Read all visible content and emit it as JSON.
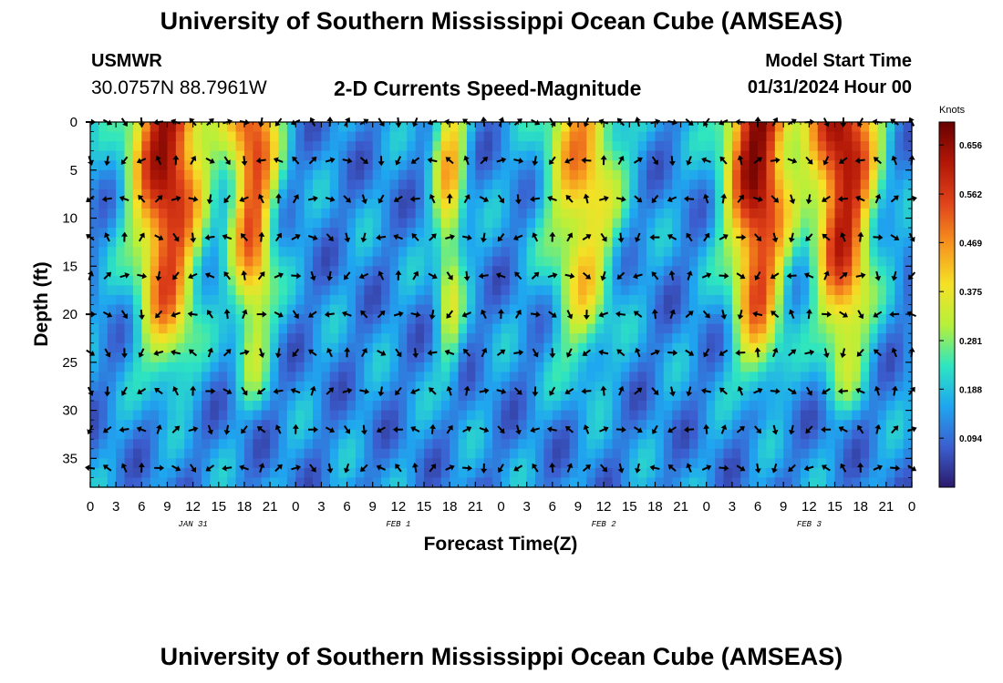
{
  "header": {
    "title": "University of Southern Mississippi Ocean Cube (AMSEAS)",
    "station": "USMWR",
    "coords": "30.0757N  88.7961W",
    "product": "2-D Currents Speed-Magnitude",
    "model_label": "Model Start Time",
    "model_time": "01/31/2024 Hour 00"
  },
  "footer": {
    "title": "University of Southern Mississippi Ocean Cube (AMSEAS)"
  },
  "chart_data": {
    "type": "heatmap",
    "title": "2-D Currents Speed-Magnitude",
    "xlabel": "Forecast Time(Z)",
    "ylabel": "Depth (ft)",
    "x_hours_range": [
      0,
      96
    ],
    "x_tick_labels": [
      "0",
      "3",
      "6",
      "9",
      "12",
      "15",
      "18",
      "21",
      "0",
      "3",
      "6",
      "9",
      "12",
      "15",
      "18",
      "21",
      "0",
      "3",
      "6",
      "9",
      "12",
      "15",
      "18",
      "21",
      "0",
      "3",
      "6",
      "9",
      "12",
      "15",
      "18",
      "21",
      "0"
    ],
    "day_labels": [
      {
        "label": "JAN 31",
        "hour": 12
      },
      {
        "label": "FEB 1",
        "hour": 36
      },
      {
        "label": "FEB 2",
        "hour": 60
      },
      {
        "label": "FEB 3",
        "hour": 84
      }
    ],
    "y_ticks": [
      0,
      5,
      10,
      15,
      20,
      25,
      30,
      35
    ],
    "y_range": [
      0,
      38
    ],
    "colorbar": {
      "label": "Knots",
      "min": 0.0,
      "max": 0.7,
      "ticks": [
        "0.656",
        "0.562",
        "0.469",
        "0.375",
        "0.281",
        "0.188",
        "0.094"
      ],
      "stops": [
        "#2b1a6b",
        "#3b5fd0",
        "#1fa6f0",
        "#2ee6c0",
        "#b7f03a",
        "#f5e126",
        "#f7931e",
        "#e0431a",
        "#b21707",
        "#680000"
      ]
    },
    "high_speed_bands_hours": [
      {
        "center": 9,
        "width": 4.5,
        "peak": 0.64
      },
      {
        "center": 19,
        "width": 3,
        "peak": 0.54
      },
      {
        "center": 42,
        "width": 2,
        "peak": 0.4
      },
      {
        "center": 57.5,
        "width": 4.5,
        "peak": 0.45
      },
      {
        "center": 78,
        "width": 4,
        "peak": 0.66
      },
      {
        "center": 88,
        "width": 4,
        "peak": 0.64
      }
    ],
    "direction_phases_deg": [
      0,
      60,
      120,
      180,
      240,
      300,
      320,
      340,
      20,
      80,
      140,
      200,
      260,
      300,
      340
    ]
  }
}
